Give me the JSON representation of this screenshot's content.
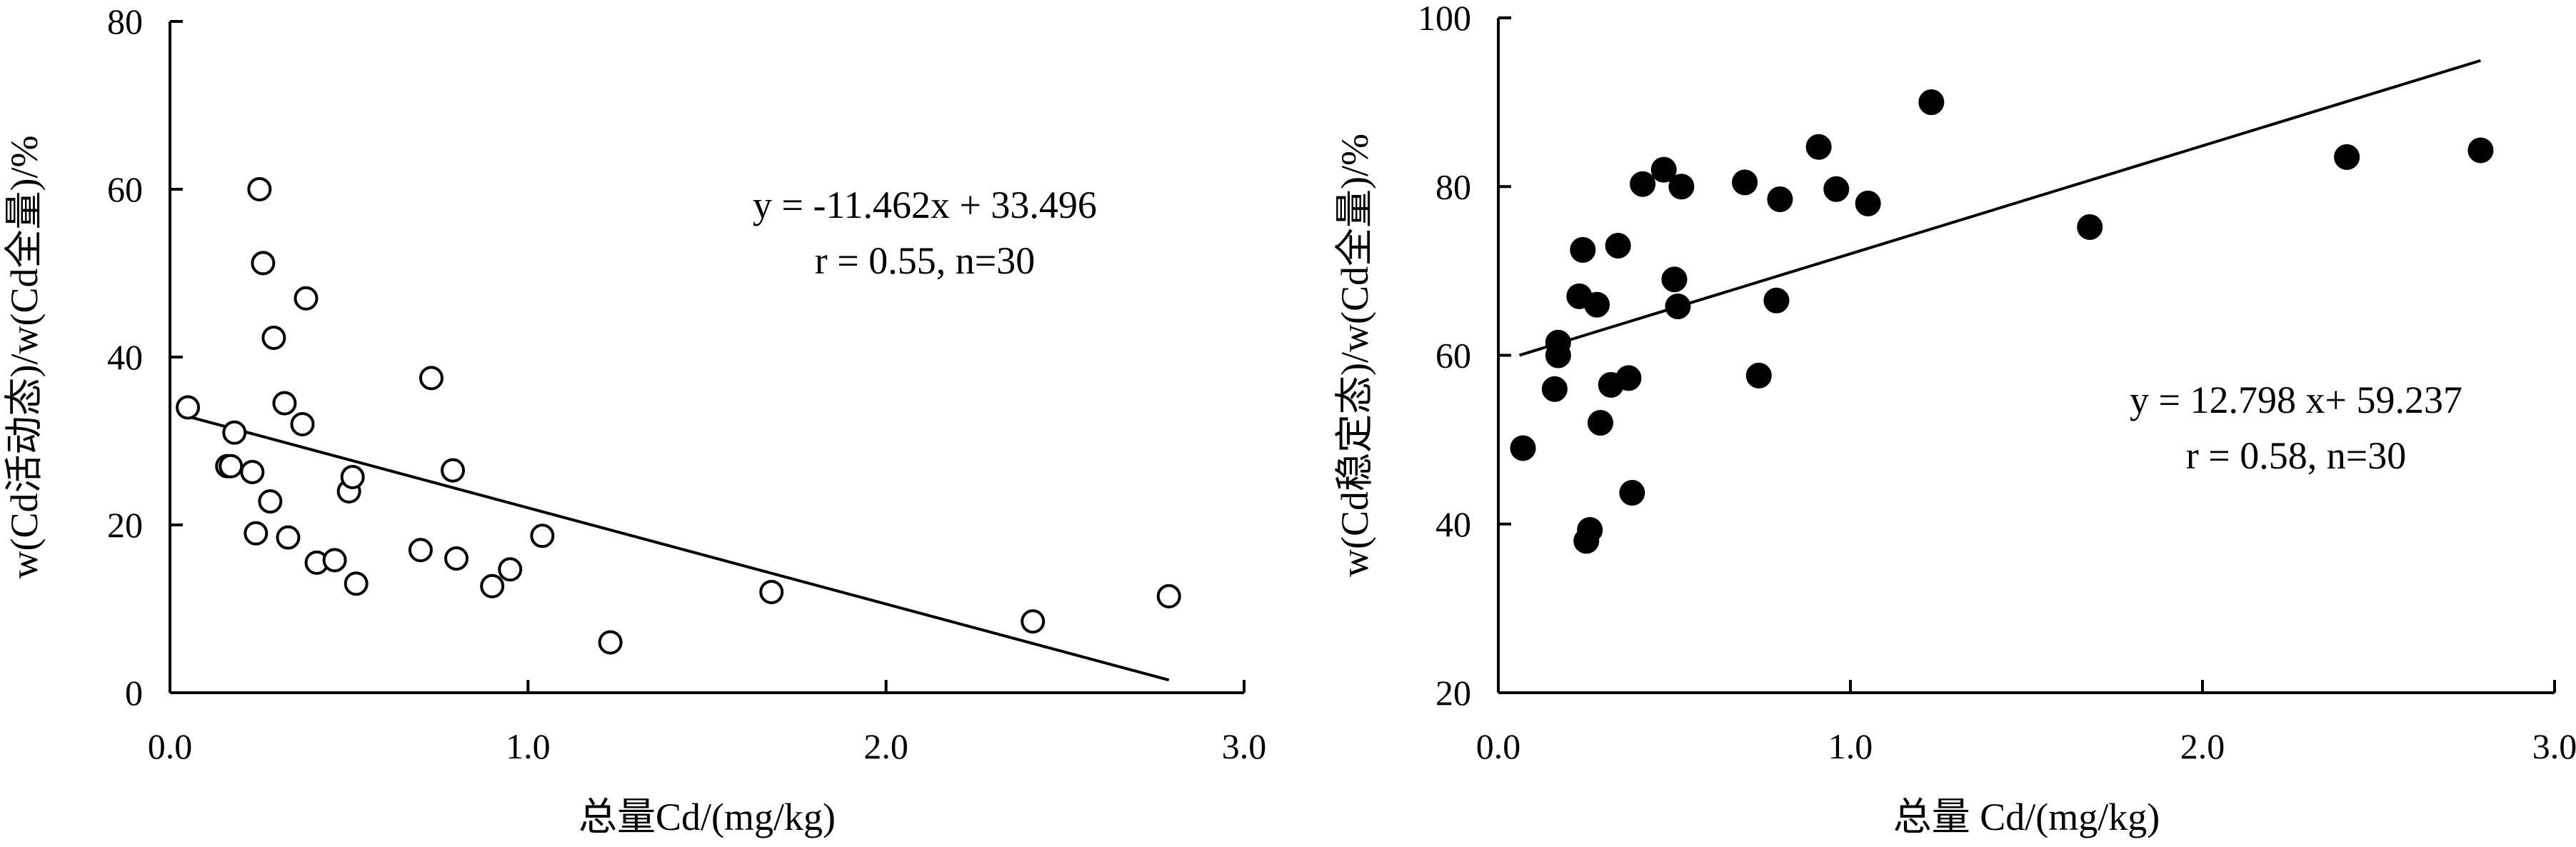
{
  "chart_data": [
    {
      "type": "scatter",
      "title": "",
      "xlabel": "总量Cd/(mg/kg)",
      "ylabel": "w(Cd活动态)/w(Cd全量)/%",
      "xlim": [
        0,
        3.0
      ],
      "ylim": [
        0,
        80
      ],
      "xticks": [
        "0.0",
        "1.0",
        "2.0",
        "3.0"
      ],
      "yticks": [
        "0",
        "20",
        "40",
        "60",
        "80"
      ],
      "marker": "open-circle",
      "grid": false,
      "legend": "none",
      "fit": {
        "slope": -11.462,
        "intercept": 33.496,
        "x_start": 0.05,
        "x_end": 2.79
      },
      "equation_line1": "y = -11.462x + 33.496",
      "equation_line2": "r = 0.55, n=30",
      "equation_position": "upper-right",
      "x": [
        0.05,
        0.16,
        0.17,
        0.18,
        0.23,
        0.24,
        0.25,
        0.26,
        0.28,
        0.29,
        0.32,
        0.33,
        0.37,
        0.38,
        0.41,
        0.46,
        0.5,
        0.51,
        0.52,
        0.7,
        0.73,
        0.79,
        0.8,
        0.9,
        0.95,
        1.04,
        1.23,
        1.68,
        2.41,
        2.79
      ],
      "y": [
        34.0,
        27.0,
        27.0,
        31.0,
        26.3,
        19.0,
        60.0,
        51.2,
        22.8,
        42.3,
        34.5,
        18.5,
        32.0,
        47.0,
        15.5,
        15.8,
        24.0,
        25.7,
        13.0,
        17.0,
        37.5,
        26.5,
        16.0,
        12.7,
        14.7,
        18.7,
        6.0,
        12.0,
        8.5,
        11.5
      ]
    },
    {
      "type": "scatter",
      "title": "",
      "xlabel": "总量 Cd/(mg/kg)",
      "ylabel": "w(Cd稳定态)/w(Cd全量)/%",
      "xlim": [
        0,
        3.0
      ],
      "ylim": [
        20,
        100
      ],
      "xticks": [
        "0.0",
        "1.0",
        "2.0",
        "3.0"
      ],
      "yticks": [
        "20",
        "40",
        "60",
        "80",
        "100"
      ],
      "marker": "filled-circle",
      "grid": false,
      "legend": "none",
      "fit": {
        "slope": 12.798,
        "intercept": 59.237,
        "x_start": 0.06,
        "x_end": 2.79
      },
      "equation_line1": "y = 12.798 x+ 59.237",
      "equation_line2": "r = 0.58, n=30",
      "equation_position": "center-right",
      "x": [
        0.07,
        0.16,
        0.17,
        0.17,
        0.23,
        0.24,
        0.25,
        0.26,
        0.28,
        0.29,
        0.32,
        0.34,
        0.37,
        0.38,
        0.41,
        0.47,
        0.5,
        0.51,
        0.52,
        0.7,
        0.74,
        0.79,
        0.8,
        0.91,
        0.96,
        1.05,
        1.23,
        1.68,
        2.41,
        2.79
      ],
      "y": [
        49.0,
        56.0,
        61.5,
        60.0,
        67.0,
        72.5,
        38.0,
        39.3,
        66.0,
        52.0,
        56.5,
        73.0,
        57.3,
        43.7,
        80.3,
        82.0,
        69.0,
        65.8,
        80.0,
        80.5,
        57.6,
        66.5,
        78.5,
        84.7,
        79.7,
        78.0,
        90.0,
        75.2,
        83.5,
        84.3
      ]
    }
  ]
}
